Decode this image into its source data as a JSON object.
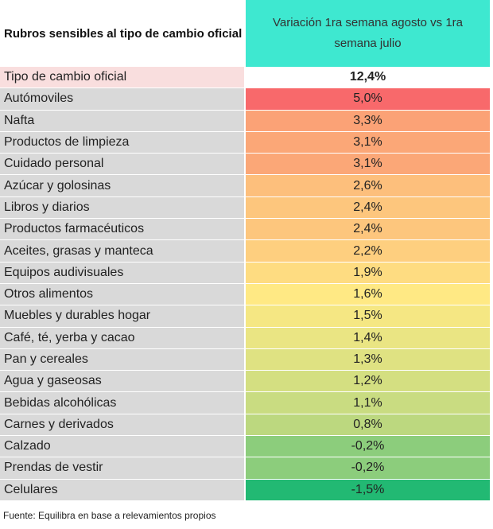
{
  "header": {
    "title": "Rubros sensibles al tipo de cambio oficial",
    "column": "Variación 1ra semana agosto vs 1ra semana julio",
    "column_color": "#3ee8d0"
  },
  "highlight_row": {
    "label": "Tipo de cambio oficial",
    "value": "12,4%",
    "label_color": "#f9dede",
    "value_color": "#ffffff"
  },
  "rows": [
    {
      "label": "Autómoviles",
      "value": "5,0%",
      "color": "#f8696b"
    },
    {
      "label": "Nafta",
      "value": "3,3%",
      "color": "#fba276"
    },
    {
      "label": "Productos de limpieza",
      "value": "3,1%",
      "color": "#fba777"
    },
    {
      "label": "Cuidado personal",
      "value": "3,1%",
      "color": "#fba777"
    },
    {
      "label": "Azúcar y golosinas",
      "value": "2,6%",
      "color": "#fdbf7c"
    },
    {
      "label": "Libros y diarios",
      "value": "2,4%",
      "color": "#fdc67d"
    },
    {
      "label": "Productos farmacéuticos",
      "value": "2,4%",
      "color": "#fdc67d"
    },
    {
      "label": "Aceites, grasas y manteca",
      "value": "2,2%",
      "color": "#fecf7f"
    },
    {
      "label": "Equipos audivisuales",
      "value": "1,9%",
      "color": "#fedc81"
    },
    {
      "label": "Otros alimentos",
      "value": "1,6%",
      "color": "#ffe984"
    },
    {
      "label": "Muebles y durables hogar",
      "value": "1,5%",
      "color": "#f5e783"
    },
    {
      "label": "Café, té, yerba y cacao",
      "value": "1,4%",
      "color": "#eae583"
    },
    {
      "label": "Pan y cereales",
      "value": "1,3%",
      "color": "#dfe282"
    },
    {
      "label": "Agua y gaseosas",
      "value": "1,2%",
      "color": "#d4df81"
    },
    {
      "label": "Bebidas alcohólicas",
      "value": "1,1%",
      "color": "#c9dc81"
    },
    {
      "label": "Carnes y derivados",
      "value": "0,8%",
      "color": "#bcd87f"
    },
    {
      "label": "Calzado",
      "value": "-0,2%",
      "color": "#8ccd7c"
    },
    {
      "label": "Prendas de vestir",
      "value": "-0,2%",
      "color": "#8ccd7c"
    },
    {
      "label": "Celulares",
      "value": "-1,5%",
      "color": "#22b973"
    }
  ],
  "footer": "Fuente: Equilibra en base a relevamientos propios"
}
